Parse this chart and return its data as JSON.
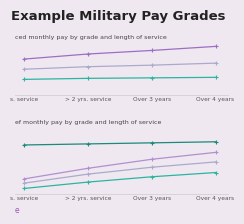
{
  "title": "Example Military Pay Grades",
  "background_color": "#f0e8f0",
  "subtitle1": "ced monthly pay by grade and length of service",
  "subtitle2": "ef monthly pay by grade and length of service",
  "footer": "e",
  "x_labels": [
    "s. service",
    "> 2 yrs. service",
    "Over 3 years",
    "Over 4 years"
  ],
  "x_values": [
    0,
    1,
    2,
    3
  ],
  "chart1_lines": [
    {
      "color": "#9b6fc4",
      "y": [
        0.7,
        0.8,
        0.87,
        0.95
      ],
      "marker": "+"
    },
    {
      "color": "#aaaacc",
      "y": [
        0.5,
        0.55,
        0.58,
        0.62
      ],
      "marker": "+"
    },
    {
      "color": "#2ab5a0",
      "y": [
        0.3,
        0.32,
        0.33,
        0.34
      ],
      "marker": "+"
    }
  ],
  "chart2_lines": [
    {
      "color": "#1a8a7a",
      "y": [
        0.92,
        0.94,
        0.96,
        0.98
      ],
      "marker": "+"
    },
    {
      "color": "#b090d0",
      "y": [
        0.28,
        0.48,
        0.65,
        0.78
      ],
      "marker": "+"
    },
    {
      "color": "#aaaacc",
      "y": [
        0.2,
        0.37,
        0.5,
        0.6
      ],
      "marker": "+"
    },
    {
      "color": "#2ab5a0",
      "y": [
        0.1,
        0.22,
        0.32,
        0.4
      ],
      "marker": "+"
    }
  ],
  "subtitle_color": "#444444",
  "subtitle_fontsize": 4.5,
  "title_fontsize": 9.5,
  "axis_label_fontsize": 4.2,
  "footer_fontsize": 5.5,
  "footer_color": "#9b59b6",
  "line_width": 0.9,
  "marker_size": 2.5
}
